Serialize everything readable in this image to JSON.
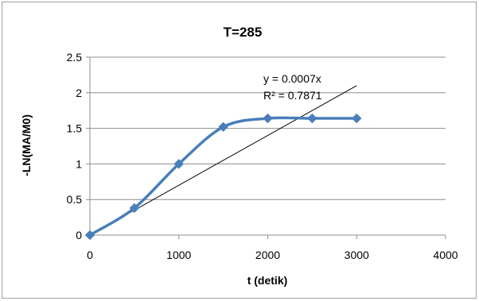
{
  "chart_data": {
    "type": "scatter",
    "title": "T=285",
    "xlabel": "t (detik)",
    "ylabel": "-LN(MA/M0)",
    "xlim": [
      0,
      4000
    ],
    "ylim": [
      0,
      2.5
    ],
    "x_ticks": [
      0,
      1000,
      2000,
      3000,
      4000
    ],
    "y_ticks": [
      0,
      0.5,
      1,
      1.5,
      2,
      2.5
    ],
    "grid": "horizontal",
    "legend": "none",
    "series": [
      {
        "x": [
          0,
          500,
          1000,
          1500,
          2000,
          2500,
          3000
        ],
        "values": [
          0,
          0.38,
          1.0,
          1.52,
          1.64,
          1.64,
          1.64
        ],
        "color": "#4a7ebb",
        "smoothed": true,
        "marker": "diamond"
      }
    ],
    "trendline": {
      "type": "linear",
      "slope": 0.0007,
      "intercept": 0,
      "color": "#000000",
      "x_range": [
        0,
        3000
      ],
      "equation_label": "y = 0.0007x",
      "r2_label": "R² = 0.7871"
    }
  }
}
